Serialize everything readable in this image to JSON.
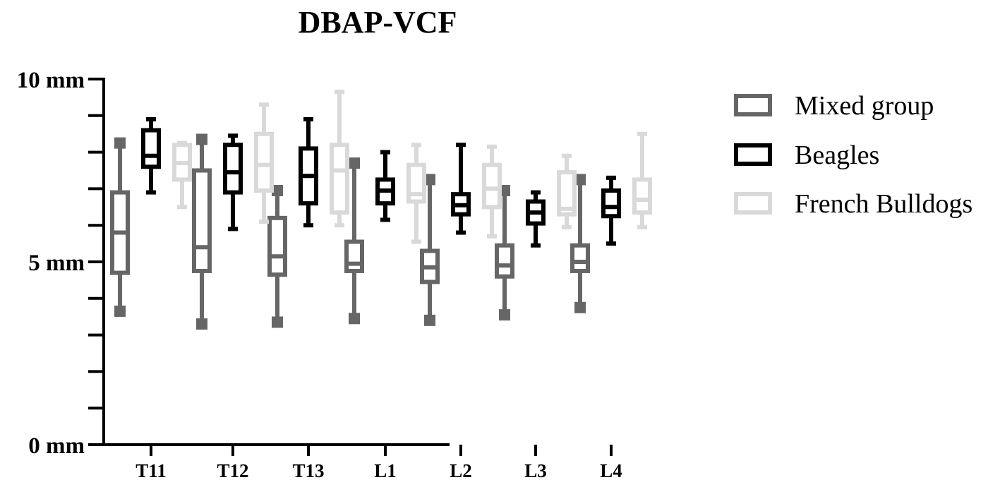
{
  "chart_data": {
    "type": "boxplot",
    "title": "DBAP-VCF",
    "xlabel": "",
    "ylabel": "",
    "ylim": [
      0,
      10
    ],
    "yticks": [
      {
        "value": 0,
        "label": "0 mm"
      },
      {
        "value": 5,
        "label": "5 mm"
      },
      {
        "value": 10,
        "label": "10 mm"
      }
    ],
    "minor_tick_step": 1,
    "grid": false,
    "legend_position": "right",
    "categories": [
      "T11",
      "T12",
      "T13",
      "L1",
      "L2",
      "L3",
      "L4"
    ],
    "series": [
      {
        "name": "Mixed group",
        "color": "#666666",
        "whisker_cap": "square",
        "boxes": [
          {
            "min": 3.65,
            "q1": 4.7,
            "median": 5.8,
            "q3": 6.9,
            "max": 8.25
          },
          {
            "min": 3.3,
            "q1": 4.75,
            "median": 5.4,
            "q3": 7.5,
            "max": 8.35
          },
          {
            "min": 3.35,
            "q1": 4.65,
            "median": 5.15,
            "q3": 6.2,
            "max": 6.95
          },
          {
            "min": 3.45,
            "q1": 4.75,
            "median": 4.95,
            "q3": 5.55,
            "max": 7.7
          },
          {
            "min": 3.4,
            "q1": 4.45,
            "median": 4.85,
            "q3": 5.3,
            "max": 7.25
          },
          {
            "min": 3.55,
            "q1": 4.6,
            "median": 4.9,
            "q3": 5.45,
            "max": 6.95
          },
          {
            "min": 3.75,
            "q1": 4.75,
            "median": 5.0,
            "q3": 5.45,
            "max": 7.25
          }
        ]
      },
      {
        "name": "Beagles",
        "color": "#000000",
        "whisker_cap": "line",
        "boxes": [
          {
            "min": 6.9,
            "q1": 7.6,
            "median": 7.9,
            "q3": 8.6,
            "max": 8.9
          },
          {
            "min": 5.9,
            "q1": 6.9,
            "median": 7.45,
            "q3": 8.2,
            "max": 8.45
          },
          {
            "min": 6.0,
            "q1": 6.6,
            "median": 7.35,
            "q3": 8.1,
            "max": 8.9
          },
          {
            "min": 6.15,
            "q1": 6.6,
            "median": 6.95,
            "q3": 7.25,
            "max": 8.0
          },
          {
            "min": 5.8,
            "q1": 6.3,
            "median": 6.55,
            "q3": 6.85,
            "max": 8.2
          },
          {
            "min": 5.45,
            "q1": 6.05,
            "median": 6.35,
            "q3": 6.65,
            "max": 6.9
          },
          {
            "min": 5.5,
            "q1": 6.25,
            "median": 6.5,
            "q3": 6.95,
            "max": 7.3
          }
        ]
      },
      {
        "name": "French Bulldogs",
        "color": "#d9d9d9",
        "whisker_cap": "line",
        "boxes": [
          {
            "min": 6.5,
            "q1": 7.25,
            "median": 7.7,
            "q3": 8.2,
            "max": 8.25
          },
          {
            "min": 6.1,
            "q1": 6.95,
            "median": 7.65,
            "q3": 8.5,
            "max": 9.3
          },
          {
            "min": 6.0,
            "q1": 6.35,
            "median": 7.5,
            "q3": 8.2,
            "max": 9.65
          },
          {
            "min": 5.55,
            "q1": 6.65,
            "median": 6.85,
            "q3": 7.65,
            "max": 8.2
          },
          {
            "min": 5.7,
            "q1": 6.5,
            "median": 7.0,
            "q3": 7.65,
            "max": 8.15
          },
          {
            "min": 5.95,
            "q1": 6.3,
            "median": 6.45,
            "q3": 7.45,
            "max": 7.9
          },
          {
            "min": 5.95,
            "q1": 6.35,
            "median": 6.7,
            "q3": 7.25,
            "max": 8.5
          }
        ]
      }
    ]
  }
}
